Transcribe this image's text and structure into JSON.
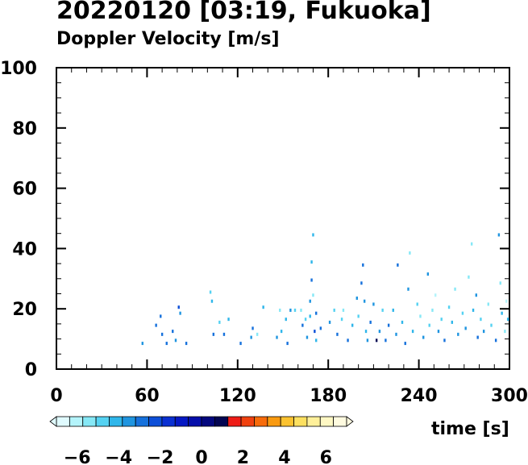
{
  "chart_data": {
    "type": "scatter",
    "title": "20220120 [03:19, Fukuoka]",
    "subtitle": "Doppler Velocity [m/s]",
    "xlabel": "time [s]",
    "ylabel": "",
    "xlim": [
      0,
      300
    ],
    "ylim": [
      0,
      100
    ],
    "xticks": [
      "0",
      "60",
      "120",
      "180",
      "240",
      "300"
    ],
    "yticks": [
      "0",
      "20",
      "40",
      "60",
      "80",
      "100"
    ],
    "colorbar": {
      "labels": [
        "−6",
        "−4",
        "−2",
        "0",
        "2",
        "4",
        "6"
      ],
      "colors": [
        "#e0fbff",
        "#b4f4fb",
        "#86e8f6",
        "#55d2f2",
        "#2fb6ea",
        "#1f95e0",
        "#1671dc",
        "#0d4fd8",
        "#0a30d2",
        "#0518c4",
        "#050eaa",
        "#04087e",
        "#030552",
        "#ee1c17",
        "#f0410f",
        "#f76b0a",
        "#f99a10",
        "#fbc22f",
        "#fde060",
        "#fff09a",
        "#fff8c4",
        "#fffbe0"
      ]
    },
    "points": [
      [
        57,
        8,
        -3.2
      ],
      [
        66,
        14,
        -2.8
      ],
      [
        69,
        17,
        -3.0
      ],
      [
        70,
        11,
        -2.6
      ],
      [
        73,
        8,
        -2.9
      ],
      [
        77,
        12,
        -3.1
      ],
      [
        79,
        9,
        -3.6
      ],
      [
        81,
        20,
        -2.4
      ],
      [
        82,
        18,
        -3.4
      ],
      [
        86,
        8,
        -2.7
      ],
      [
        102,
        25,
        -4.6
      ],
      [
        103,
        22,
        -3.9
      ],
      [
        104,
        11,
        -2.8
      ],
      [
        108,
        15,
        -5.0
      ],
      [
        111,
        11,
        -2.8
      ],
      [
        114,
        16,
        -4.1
      ],
      [
        122,
        8,
        -2.6
      ],
      [
        129,
        10,
        -3.5
      ],
      [
        130,
        13,
        -2.9
      ],
      [
        133,
        11,
        -5.2
      ],
      [
        137,
        20,
        -4.3
      ],
      [
        146,
        10,
        -3.7
      ],
      [
        148,
        19,
        -5.1
      ],
      [
        149,
        12,
        -3.9
      ],
      [
        152,
        16,
        -4.1
      ],
      [
        153,
        8,
        -2.9
      ],
      [
        155,
        19,
        -3.8
      ],
      [
        158,
        19,
        -4.6
      ],
      [
        162,
        19,
        -5.6
      ],
      [
        163,
        14,
        -3.0
      ],
      [
        165,
        16,
        -4.7
      ],
      [
        166,
        10,
        -3.5
      ],
      [
        168,
        17,
        -4.0
      ],
      [
        168,
        22,
        -3.4
      ],
      [
        169,
        35,
        -4.4
      ],
      [
        169,
        29,
        -2.6
      ],
      [
        170,
        44,
        -3.9
      ],
      [
        170,
        24,
        -5.2
      ],
      [
        171,
        12,
        -2.5
      ],
      [
        172,
        18,
        -2.8
      ],
      [
        172,
        9,
        -4.0
      ],
      [
        175,
        13,
        -3.1
      ],
      [
        181,
        15,
        -3.4
      ],
      [
        184,
        19,
        -4.8
      ],
      [
        186,
        11,
        -3.1
      ],
      [
        189,
        16,
        -4.5
      ],
      [
        190,
        19,
        -5.7
      ],
      [
        193,
        9,
        -2.6
      ],
      [
        196,
        14,
        -4.0
      ],
      [
        199,
        23,
        -3.2
      ],
      [
        200,
        17,
        -5.0
      ],
      [
        202,
        28,
        -2.9
      ],
      [
        203,
        34,
        -2.6
      ],
      [
        204,
        22,
        -3.5
      ],
      [
        205,
        12,
        -4.2
      ],
      [
        206,
        9,
        -3.6
      ],
      [
        208,
        15,
        -2.9
      ],
      [
        210,
        21,
        -3.8
      ],
      [
        212,
        9,
        1.2
      ],
      [
        214,
        12,
        -3.4
      ],
      [
        216,
        19,
        -4.6
      ],
      [
        218,
        9,
        -2.6
      ],
      [
        220,
        14,
        -3.1
      ],
      [
        223,
        19,
        -4.4
      ],
      [
        225,
        11,
        -3.6
      ],
      [
        226,
        34,
        -3.0
      ],
      [
        229,
        15,
        -4.2
      ],
      [
        231,
        8,
        -2.8
      ],
      [
        233,
        26,
        -3.5
      ],
      [
        234,
        38,
        -5.6
      ],
      [
        236,
        12,
        -3.9
      ],
      [
        239,
        21,
        -4.6
      ],
      [
        241,
        17,
        -5.1
      ],
      [
        243,
        10,
        -3.2
      ],
      [
        246,
        31,
        -3.4
      ],
      [
        247,
        14,
        -4.5
      ],
      [
        249,
        19,
        -5.3
      ],
      [
        251,
        24,
        -5.9
      ],
      [
        253,
        12,
        -3.7
      ],
      [
        255,
        16,
        -4.8
      ],
      [
        257,
        9,
        -3.0
      ],
      [
        260,
        20,
        -5.0
      ],
      [
        262,
        15,
        -4.3
      ],
      [
        264,
        26,
        -5.4
      ],
      [
        266,
        11,
        -3.6
      ],
      [
        269,
        18,
        -4.9
      ],
      [
        271,
        13,
        -3.3
      ],
      [
        273,
        30,
        -5.1
      ],
      [
        275,
        41,
        -5.5
      ],
      [
        276,
        19,
        -4.0
      ],
      [
        278,
        24,
        -3.6
      ],
      [
        279,
        10,
        -2.9
      ],
      [
        281,
        16,
        -4.7
      ],
      [
        283,
        12,
        -3.4
      ],
      [
        286,
        21,
        -5.2
      ],
      [
        288,
        14,
        -4.6
      ],
      [
        291,
        9,
        -3.1
      ],
      [
        293,
        44,
        -3.8
      ],
      [
        294,
        28,
        -5.6
      ],
      [
        295,
        18,
        -4.4
      ],
      [
        297,
        12,
        -5.4
      ],
      [
        298,
        22,
        -5.8
      ],
      [
        299,
        16,
        -4.2
      ]
    ]
  }
}
